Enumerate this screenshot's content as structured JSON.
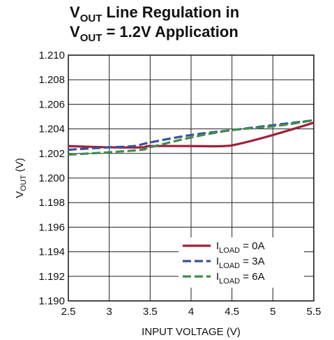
{
  "title": {
    "line1": {
      "main": "V",
      "sub": "OUT",
      "rest": " Line Regulation in"
    },
    "line2": {
      "main": "V",
      "sub": "OUT",
      "rest": " = 1.2V Application"
    }
  },
  "chart_data": {
    "type": "line",
    "xlabel": "INPUT VOLTAGE (V)",
    "ylabel": {
      "main": "V",
      "sub": "OUT",
      "rest": " (V)"
    },
    "xlim": [
      2.5,
      5.5
    ],
    "ylim": [
      1.19,
      1.21
    ],
    "xticks": [
      "2.5",
      "3",
      "3.5",
      "4",
      "4.5",
      "5",
      "5.5"
    ],
    "yticks": [
      "1.190",
      "1.192",
      "1.194",
      "1.196",
      "1.198",
      "1.200",
      "1.202",
      "1.204",
      "1.206",
      "1.208",
      "1.210"
    ],
    "grid": true,
    "legend_position": "lower-right",
    "series": [
      {
        "name": {
          "main": "I",
          "sub": "LOAD",
          "rest": " = 0A"
        },
        "color": "#a0203a",
        "style": "solid",
        "x": [
          2.5,
          3.0,
          3.4,
          3.5,
          4.0,
          4.4,
          4.6,
          5.0,
          5.5
        ],
        "y": [
          1.2026,
          1.2025,
          1.2025,
          1.2026,
          1.2026,
          1.2026,
          1.2028,
          1.2035,
          1.2045
        ]
      },
      {
        "name": {
          "main": "I",
          "sub": "LOAD",
          "rest": " = 3A"
        },
        "color": "#3a4f9e",
        "style": "dashed",
        "x": [
          2.5,
          3.0,
          3.3,
          3.5,
          4.0,
          4.5,
          5.0,
          5.5
        ],
        "y": [
          1.2023,
          1.2025,
          1.2026,
          1.2029,
          1.2035,
          1.2039,
          1.2043,
          1.2047
        ]
      },
      {
        "name": {
          "main": "I",
          "sub": "LOAD",
          "rest": " = 6A"
        },
        "color": "#3f8f4a",
        "style": "dashed",
        "x": [
          2.5,
          3.0,
          3.4,
          3.5,
          4.0,
          4.5,
          5.0,
          5.5
        ],
        "y": [
          1.2019,
          1.2021,
          1.2023,
          1.2025,
          1.2033,
          1.2039,
          1.2042,
          1.2047
        ]
      }
    ]
  }
}
